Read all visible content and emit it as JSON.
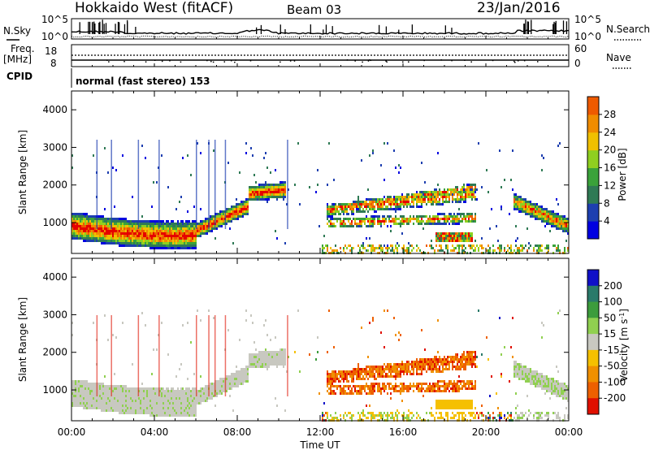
{
  "header": {
    "station": "Hokkaido West (fitACF)",
    "beam": "Beam 03",
    "date": "23/Jan/2016"
  },
  "noise_panel": {
    "left_label": "N.Sky",
    "right_label": "N.Search",
    "ticks_left": [
      "10^5",
      "10^0"
    ],
    "ticks_right": [
      "10^5",
      "10^0"
    ]
  },
  "freq_panel": {
    "left_label_1": "Freq.",
    "left_label_2": "[MHz]",
    "right_label": "Nave",
    "ticks_left": [
      "18",
      "8"
    ],
    "ticks_right": [
      "60",
      "0"
    ]
  },
  "cpid": {
    "label": "CPID",
    "value": "normal (fast stereo) 153"
  },
  "time_axis": {
    "label": "Time UT",
    "ticks": [
      "00:00",
      "04:00",
      "08:00",
      "12:00",
      "16:00",
      "20:00",
      "00:00"
    ]
  },
  "colors": {
    "power": [
      "#0000e0",
      "#1e3fb0",
      "#2f7a55",
      "#3aa23a",
      "#8fcf20",
      "#f0c000",
      "#f08c00",
      "#ee5a00",
      "#e60000"
    ],
    "velocity": [
      "#1010c8",
      "#2a7a6a",
      "#3c9c3c",
      "#90d050",
      "#c8c8c0",
      "#f5c000",
      "#f09000",
      "#ee6000",
      "#e01000"
    ]
  },
  "chart_data": [
    {
      "type": "heatmap",
      "name": "power",
      "ylabel": "Slant Range [km]",
      "xlabel": "",
      "ylim": [
        180,
        4500
      ],
      "yticks": [
        "1000",
        "2000",
        "3000",
        "4000"
      ],
      "ytick_values": [
        1000,
        2000,
        3000,
        4000
      ],
      "colorbar_label": "Power [dB]",
      "colorbar_ticks": [
        "4",
        "8",
        "12",
        "16",
        "20",
        "24",
        "28"
      ],
      "colorbar_range": [
        0,
        30
      ]
    },
    {
      "type": "heatmap",
      "name": "velocity",
      "ylabel": "Slant Range [km]",
      "xlabel": "Time UT",
      "ylim": [
        180,
        4500
      ],
      "yticks": [
        "1000",
        "2000",
        "3000",
        "4000"
      ],
      "ytick_values": [
        1000,
        2000,
        3000,
        4000
      ],
      "colorbar_label": "Velocity [m s^-1]",
      "colorbar_ticks": [
        "200",
        "100",
        "50",
        "15",
        "-15",
        "-50",
        "-100",
        "-200"
      ]
    }
  ]
}
